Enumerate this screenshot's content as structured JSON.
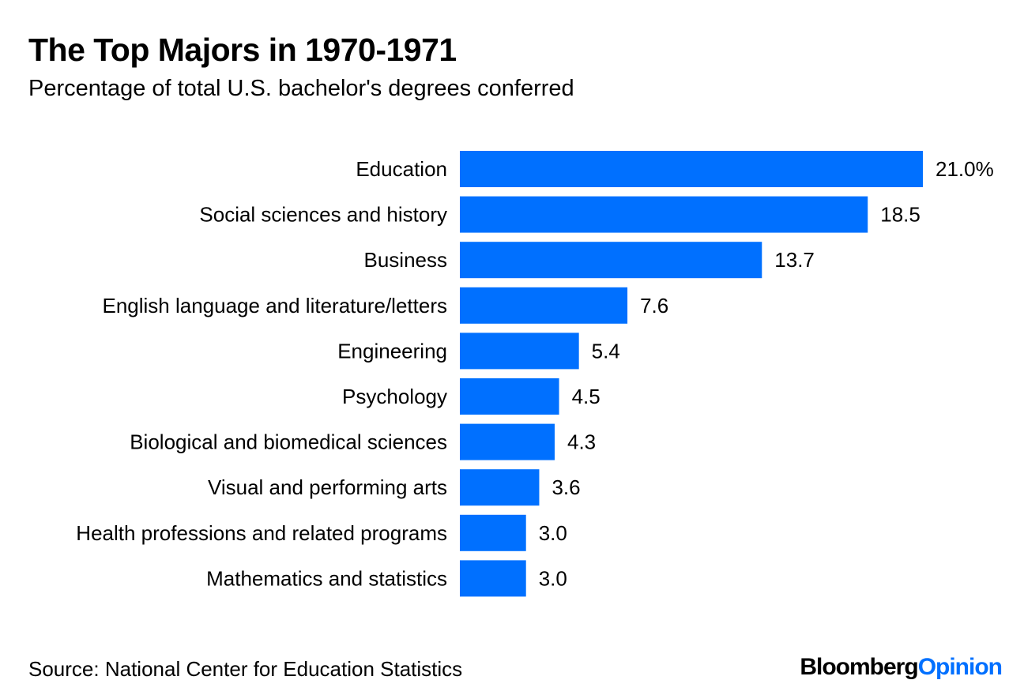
{
  "chart_data": {
    "type": "bar",
    "orientation": "horizontal",
    "title": "The Top Majors in 1970-1971",
    "subtitle": "Percentage of total U.S. bachelor's degrees conferred",
    "categories": [
      "Education",
      "Social sciences and history",
      "Business",
      "English language and literature/letters",
      "Engineering",
      "Psychology",
      "Biological and biomedical sciences",
      "Visual and performing arts",
      "Health professions and related programs",
      "Mathematics and statistics"
    ],
    "values": [
      21.0,
      18.5,
      13.7,
      7.6,
      5.4,
      4.5,
      4.3,
      3.6,
      3.0,
      3.0
    ],
    "data_labels": [
      "21.0%",
      "18.5",
      "13.7",
      "7.6",
      "5.4",
      "4.5",
      "4.3",
      "3.6",
      "3.0",
      "3.0"
    ],
    "xlim": [
      0,
      21
    ],
    "grid": false,
    "bar_color": "#0070ff",
    "source": "Source: National Center for Education Statistics"
  },
  "logo": {
    "part1": "Bloomberg",
    "part2": "Opinion"
  }
}
